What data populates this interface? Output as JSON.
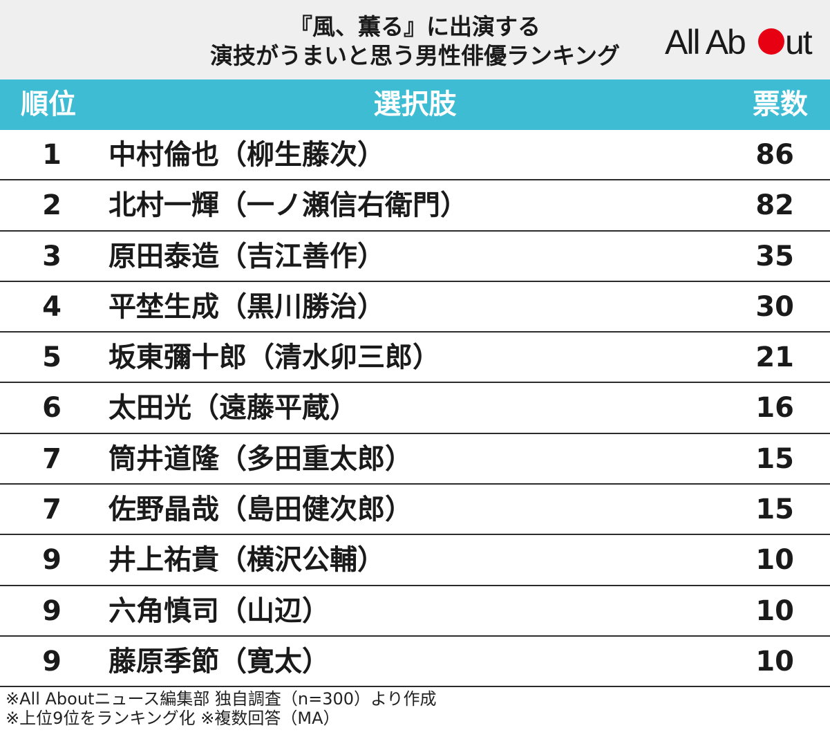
{
  "title": {
    "line1": "『風、薫る』に出演する",
    "line2": "演技がうまいと思う男性俳優ランキング"
  },
  "logo": {
    "text_a": "All Ab",
    "text_b": "ut",
    "dot_color": "#e60012"
  },
  "colors": {
    "header": "#3ebcd3",
    "band": "#efefef"
  },
  "chart_data": {
    "type": "table",
    "columns": [
      "順位",
      "選択肢",
      "票数"
    ],
    "rows": [
      {
        "rank": "1",
        "name": "中村倫也（柳生藤次）",
        "votes": 86
      },
      {
        "rank": "2",
        "name": "北村一輝（一ノ瀬信右衛門）",
        "votes": 82
      },
      {
        "rank": "3",
        "name": "原田泰造（吉江善作）",
        "votes": 35
      },
      {
        "rank": "4",
        "name": "平埜生成（黒川勝治）",
        "votes": 30
      },
      {
        "rank": "5",
        "name": "坂東彌十郎（清水卯三郎）",
        "votes": 21
      },
      {
        "rank": "6",
        "name": "太田光（遠藤平蔵）",
        "votes": 16
      },
      {
        "rank": "7",
        "name": "筒井道隆（多田重太郎）",
        "votes": 15
      },
      {
        "rank": "7",
        "name": "佐野晶哉（島田健次郎）",
        "votes": 15
      },
      {
        "rank": "9",
        "name": "井上祐貴（横沢公輔）",
        "votes": 10
      },
      {
        "rank": "9",
        "name": "六角慎司（山辺）",
        "votes": 10
      },
      {
        "rank": "9",
        "name": "藤原季節（寛太）",
        "votes": 10
      }
    ]
  },
  "footnotes": [
    "※All Aboutニュース編集部 独自調査（n=300）より作成",
    "※上位9位をランキング化 ※複数回答（MA）"
  ]
}
